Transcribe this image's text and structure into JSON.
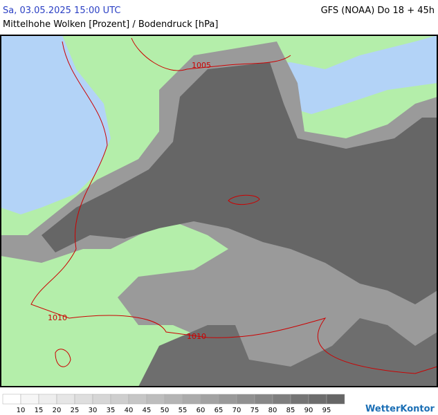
{
  "header": {
    "datetime": "Sa, 03.05.2025 15:00 UTC",
    "model": "GFS (NOAA) Do 18 + 45h",
    "subtitle": "Mittelhohe Wolken [Prozent] / Bodendruck [hPa]"
  },
  "isobars": [
    {
      "label": "1005"
    },
    {
      "label": "1010"
    },
    {
      "label": "1010"
    }
  ],
  "legend": {
    "labels": [
      10,
      15,
      20,
      25,
      30,
      35,
      40,
      45,
      50,
      55,
      60,
      65,
      70,
      75,
      80,
      85,
      90,
      95
    ],
    "colors": [
      "#ffffff",
      "#f6f6f6",
      "#eeeeee",
      "#e6e6e6",
      "#dedede",
      "#d6d6d6",
      "#cecece",
      "#c6c6c6",
      "#bdbdbd",
      "#b4b4b4",
      "#ababab",
      "#a2a2a2",
      "#999999",
      "#909090",
      "#878787",
      "#7e7e7e",
      "#757575",
      "#6d6d6d",
      "#666666"
    ]
  },
  "brand": "WetterKontor"
}
